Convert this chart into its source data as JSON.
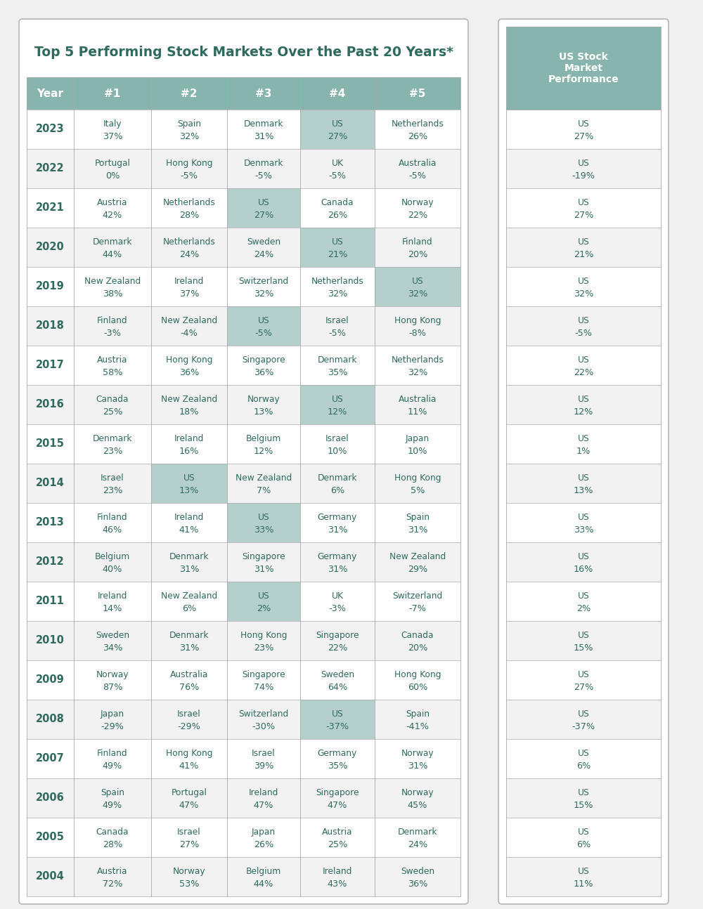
{
  "title": "Top 5 Performing Stock Markets Over the Past 20 Years*",
  "headers": [
    "Year",
    "#1",
    "#2",
    "#3",
    "#4",
    "#5"
  ],
  "us_header": "US Stock\nMarket\nPerformance",
  "rows": [
    {
      "year": "2023",
      "cols": [
        [
          "Italy",
          "37%"
        ],
        [
          "Spain",
          "32%"
        ],
        [
          "Denmark",
          "31%"
        ],
        [
          "US",
          "27%"
        ],
        [
          "Netherlands",
          "26%"
        ]
      ],
      "us_highlight": [
        false,
        false,
        false,
        true,
        false
      ],
      "us": [
        "US",
        "27%"
      ]
    },
    {
      "year": "2022",
      "cols": [
        [
          "Portugal",
          "0%"
        ],
        [
          "Hong Kong",
          "-5%"
        ],
        [
          "Denmark",
          "-5%"
        ],
        [
          "UK",
          "-5%"
        ],
        [
          "Australia",
          "-5%"
        ]
      ],
      "us_highlight": [
        false,
        false,
        false,
        false,
        false
      ],
      "us": [
        "US",
        "-19%"
      ]
    },
    {
      "year": "2021",
      "cols": [
        [
          "Austria",
          "42%"
        ],
        [
          "Netherlands",
          "28%"
        ],
        [
          "US",
          "27%"
        ],
        [
          "Canada",
          "26%"
        ],
        [
          "Norway",
          "22%"
        ]
      ],
      "us_highlight": [
        false,
        false,
        true,
        false,
        false
      ],
      "us": [
        "US",
        "27%"
      ]
    },
    {
      "year": "2020",
      "cols": [
        [
          "Denmark",
          "44%"
        ],
        [
          "Netherlands",
          "24%"
        ],
        [
          "Sweden",
          "24%"
        ],
        [
          "US",
          "21%"
        ],
        [
          "Finland",
          "20%"
        ]
      ],
      "us_highlight": [
        false,
        false,
        false,
        true,
        false
      ],
      "us": [
        "US",
        "21%"
      ]
    },
    {
      "year": "2019",
      "cols": [
        [
          "New Zealand",
          "38%"
        ],
        [
          "Ireland",
          "37%"
        ],
        [
          "Switzerland",
          "32%"
        ],
        [
          "Netherlands",
          "32%"
        ],
        [
          "US",
          "32%"
        ]
      ],
      "us_highlight": [
        false,
        false,
        false,
        false,
        true
      ],
      "us": [
        "US",
        "32%"
      ]
    },
    {
      "year": "2018",
      "cols": [
        [
          "Finland",
          "-3%"
        ],
        [
          "New Zealand",
          "-4%"
        ],
        [
          "US",
          "-5%"
        ],
        [
          "Israel",
          "-5%"
        ],
        [
          "Hong Kong",
          "-8%"
        ]
      ],
      "us_highlight": [
        false,
        false,
        true,
        false,
        false
      ],
      "us": [
        "US",
        "-5%"
      ]
    },
    {
      "year": "2017",
      "cols": [
        [
          "Austria",
          "58%"
        ],
        [
          "Hong Kong",
          "36%"
        ],
        [
          "Singapore",
          "36%"
        ],
        [
          "Denmark",
          "35%"
        ],
        [
          "Netherlands",
          "32%"
        ]
      ],
      "us_highlight": [
        false,
        false,
        false,
        false,
        false
      ],
      "us": [
        "US",
        "22%"
      ]
    },
    {
      "year": "2016",
      "cols": [
        [
          "Canada",
          "25%"
        ],
        [
          "New Zealand",
          "18%"
        ],
        [
          "Norway",
          "13%"
        ],
        [
          "US",
          "12%"
        ],
        [
          "Australia",
          "11%"
        ]
      ],
      "us_highlight": [
        false,
        false,
        false,
        true,
        false
      ],
      "us": [
        "US",
        "12%"
      ]
    },
    {
      "year": "2015",
      "cols": [
        [
          "Denmark",
          "23%"
        ],
        [
          "Ireland",
          "16%"
        ],
        [
          "Belgium",
          "12%"
        ],
        [
          "Israel",
          "10%"
        ],
        [
          "Japan",
          "10%"
        ]
      ],
      "us_highlight": [
        false,
        false,
        false,
        false,
        false
      ],
      "us": [
        "US",
        "1%"
      ]
    },
    {
      "year": "2014",
      "cols": [
        [
          "Israel",
          "23%"
        ],
        [
          "US",
          "13%"
        ],
        [
          "New Zealand",
          "7%"
        ],
        [
          "Denmark",
          "6%"
        ],
        [
          "Hong Kong",
          "5%"
        ]
      ],
      "us_highlight": [
        false,
        true,
        false,
        false,
        false
      ],
      "us": [
        "US",
        "13%"
      ]
    },
    {
      "year": "2013",
      "cols": [
        [
          "Finland",
          "46%"
        ],
        [
          "Ireland",
          "41%"
        ],
        [
          "US",
          "33%"
        ],
        [
          "Germany",
          "31%"
        ],
        [
          "Spain",
          "31%"
        ]
      ],
      "us_highlight": [
        false,
        false,
        true,
        false,
        false
      ],
      "us": [
        "US",
        "33%"
      ]
    },
    {
      "year": "2012",
      "cols": [
        [
          "Belgium",
          "40%"
        ],
        [
          "Denmark",
          "31%"
        ],
        [
          "Singapore",
          "31%"
        ],
        [
          "Germany",
          "31%"
        ],
        [
          "New Zealand",
          "29%"
        ]
      ],
      "us_highlight": [
        false,
        false,
        false,
        false,
        false
      ],
      "us": [
        "US",
        "16%"
      ]
    },
    {
      "year": "2011",
      "cols": [
        [
          "Ireland",
          "14%"
        ],
        [
          "New Zealand",
          "6%"
        ],
        [
          "US",
          "2%"
        ],
        [
          "UK",
          "-3%"
        ],
        [
          "Switzerland",
          "-7%"
        ]
      ],
      "us_highlight": [
        false,
        false,
        true,
        false,
        false
      ],
      "us": [
        "US",
        "2%"
      ]
    },
    {
      "year": "2010",
      "cols": [
        [
          "Sweden",
          "34%"
        ],
        [
          "Denmark",
          "31%"
        ],
        [
          "Hong Kong",
          "23%"
        ],
        [
          "Singapore",
          "22%"
        ],
        [
          "Canada",
          "20%"
        ]
      ],
      "us_highlight": [
        false,
        false,
        false,
        false,
        false
      ],
      "us": [
        "US",
        "15%"
      ]
    },
    {
      "year": "2009",
      "cols": [
        [
          "Norway",
          "87%"
        ],
        [
          "Australia",
          "76%"
        ],
        [
          "Singapore",
          "74%"
        ],
        [
          "Sweden",
          "64%"
        ],
        [
          "Hong Kong",
          "60%"
        ]
      ],
      "us_highlight": [
        false,
        false,
        false,
        false,
        false
      ],
      "us": [
        "US",
        "27%"
      ]
    },
    {
      "year": "2008",
      "cols": [
        [
          "Japan",
          "-29%"
        ],
        [
          "Israel",
          "-29%"
        ],
        [
          "Switzerland",
          "-30%"
        ],
        [
          "US",
          "-37%"
        ],
        [
          "Spain",
          "-41%"
        ]
      ],
      "us_highlight": [
        false,
        false,
        false,
        true,
        false
      ],
      "us": [
        "US",
        "-37%"
      ]
    },
    {
      "year": "2007",
      "cols": [
        [
          "Finland",
          "49%"
        ],
        [
          "Hong Kong",
          "41%"
        ],
        [
          "Israel",
          "39%"
        ],
        [
          "Germany",
          "35%"
        ],
        [
          "Norway",
          "31%"
        ]
      ],
      "us_highlight": [
        false,
        false,
        false,
        false,
        false
      ],
      "us": [
        "US",
        "6%"
      ]
    },
    {
      "year": "2006",
      "cols": [
        [
          "Spain",
          "49%"
        ],
        [
          "Portugal",
          "47%"
        ],
        [
          "Ireland",
          "47%"
        ],
        [
          "Singapore",
          "47%"
        ],
        [
          "Norway",
          "45%"
        ]
      ],
      "us_highlight": [
        false,
        false,
        false,
        false,
        false
      ],
      "us": [
        "US",
        "15%"
      ]
    },
    {
      "year": "2005",
      "cols": [
        [
          "Canada",
          "28%"
        ],
        [
          "Israel",
          "27%"
        ],
        [
          "Japan",
          "26%"
        ],
        [
          "Austria",
          "25%"
        ],
        [
          "Denmark",
          "24%"
        ]
      ],
      "us_highlight": [
        false,
        false,
        false,
        false,
        false
      ],
      "us": [
        "US",
        "6%"
      ]
    },
    {
      "year": "2004",
      "cols": [
        [
          "Austria",
          "72%"
        ],
        [
          "Norway",
          "53%"
        ],
        [
          "Belgium",
          "44%"
        ],
        [
          "Ireland",
          "43%"
        ],
        [
          "Sweden",
          "36%"
        ]
      ],
      "us_highlight": [
        false,
        false,
        false,
        false,
        false
      ],
      "us": [
        "US",
        "11%"
      ]
    }
  ],
  "header_bg": "#88b4ae",
  "us_highlight_color": "#b5d0cc",
  "text_color": "#2e6b5e",
  "border_color": "#aaaaaa",
  "light_row_bg": "#ffffff",
  "dark_row_bg": "#f2f2f2",
  "outer_border_color": "#bbbbbb",
  "page_bg": "#f0f0f0"
}
